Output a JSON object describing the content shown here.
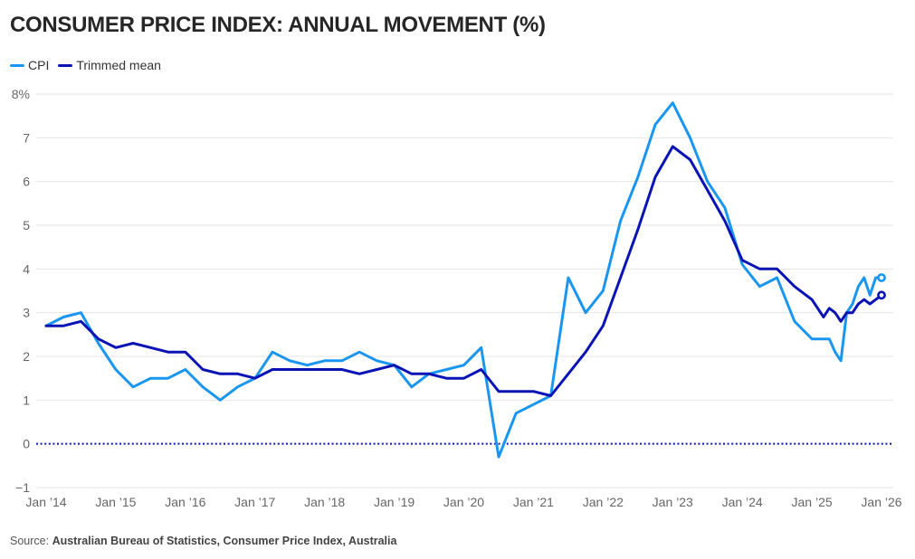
{
  "title": "CONSUMER PRICE INDEX: ANNUAL MOVEMENT (%)",
  "legend": [
    {
      "label": "CPI",
      "color": "#1a96f0"
    },
    {
      "label": "Trimmed mean",
      "color": "#0a14b4"
    }
  ],
  "source": {
    "prefix": "Source: ",
    "text": "Australian Bureau of Statistics, Consumer Price Index, Australia"
  },
  "chart_data": {
    "type": "line",
    "title": "CONSUMER PRICE INDEX: ANNUAL MOVEMENT (%)",
    "xlabel": "",
    "ylabel": "",
    "x_unit": "months since Jan 2014",
    "xlim": [
      0,
      144
    ],
    "ylim": [
      -1,
      8
    ],
    "yticks": [
      -1,
      0,
      1,
      2,
      3,
      4,
      5,
      6,
      7,
      8
    ],
    "ytick_labels": [
      "−1",
      "0",
      "1",
      "2",
      "3",
      "4",
      "5",
      "6",
      "7",
      "8%"
    ],
    "xticks": [
      0,
      12,
      24,
      36,
      48,
      60,
      72,
      84,
      96,
      108,
      120,
      132,
      144
    ],
    "xtick_labels": [
      "Jan ’14",
      "Jan ’15",
      "Jan ’16",
      "Jan ’17",
      "Jan ’18",
      "Jan ’19",
      "Jan ’20",
      "Jan ’21",
      "Jan ’22",
      "Jan ’23",
      "Jan ’24",
      "Jan ’25",
      "Jan ’26"
    ],
    "grid": true,
    "zero_line": "dotted",
    "legend_position": "top-left",
    "series": [
      {
        "name": "CPI",
        "color": "#1a96f0",
        "end_marker": true,
        "x": [
          0,
          3,
          6,
          9,
          12,
          15,
          18,
          21,
          24,
          27,
          30,
          33,
          36,
          39,
          42,
          45,
          48,
          51,
          54,
          57,
          60,
          63,
          66,
          69,
          72,
          75,
          78,
          81,
          84,
          87,
          90,
          93,
          96,
          99,
          102,
          105,
          108,
          111,
          114,
          117,
          120,
          123,
          126,
          129,
          132,
          135,
          136,
          137,
          138,
          139,
          140,
          141,
          142,
          143,
          144
        ],
        "values": [
          2.7,
          2.9,
          3.0,
          2.3,
          1.7,
          1.3,
          1.5,
          1.5,
          1.7,
          1.3,
          1.0,
          1.3,
          1.5,
          2.1,
          1.9,
          1.8,
          1.9,
          1.9,
          2.1,
          1.9,
          1.8,
          1.3,
          1.6,
          1.7,
          1.8,
          2.2,
          -0.3,
          0.7,
          0.9,
          1.1,
          3.8,
          3.0,
          3.5,
          5.1,
          6.1,
          7.3,
          7.8,
          7.0,
          6.0,
          5.4,
          4.1,
          3.6,
          3.8,
          2.8,
          2.4,
          2.4,
          2.1,
          1.9,
          3.0,
          3.2,
          3.6,
          3.8,
          3.4,
          3.8,
          3.8
        ]
      },
      {
        "name": "Trimmed mean",
        "color": "#0a14b4",
        "end_marker": true,
        "x": [
          0,
          3,
          6,
          9,
          12,
          15,
          18,
          21,
          24,
          27,
          30,
          33,
          36,
          39,
          42,
          45,
          48,
          51,
          54,
          57,
          60,
          63,
          66,
          69,
          72,
          75,
          78,
          81,
          84,
          87,
          90,
          93,
          96,
          99,
          102,
          105,
          108,
          111,
          114,
          117,
          120,
          123,
          126,
          129,
          132,
          134,
          135,
          136,
          137,
          138,
          139,
          140,
          141,
          142,
          143,
          144
        ],
        "values": [
          2.7,
          2.7,
          2.8,
          2.4,
          2.2,
          2.3,
          2.2,
          2.1,
          2.1,
          1.7,
          1.6,
          1.6,
          1.5,
          1.7,
          1.7,
          1.7,
          1.7,
          1.7,
          1.6,
          1.7,
          1.8,
          1.6,
          1.6,
          1.5,
          1.5,
          1.7,
          1.2,
          1.2,
          1.2,
          1.1,
          1.6,
          2.1,
          2.7,
          3.8,
          4.9,
          6.1,
          6.8,
          6.5,
          5.8,
          5.1,
          4.2,
          4.0,
          4.0,
          3.6,
          3.3,
          2.9,
          3.1,
          3.0,
          2.8,
          3.0,
          3.0,
          3.2,
          3.3,
          3.2,
          3.3,
          3.4
        ]
      }
    ]
  }
}
